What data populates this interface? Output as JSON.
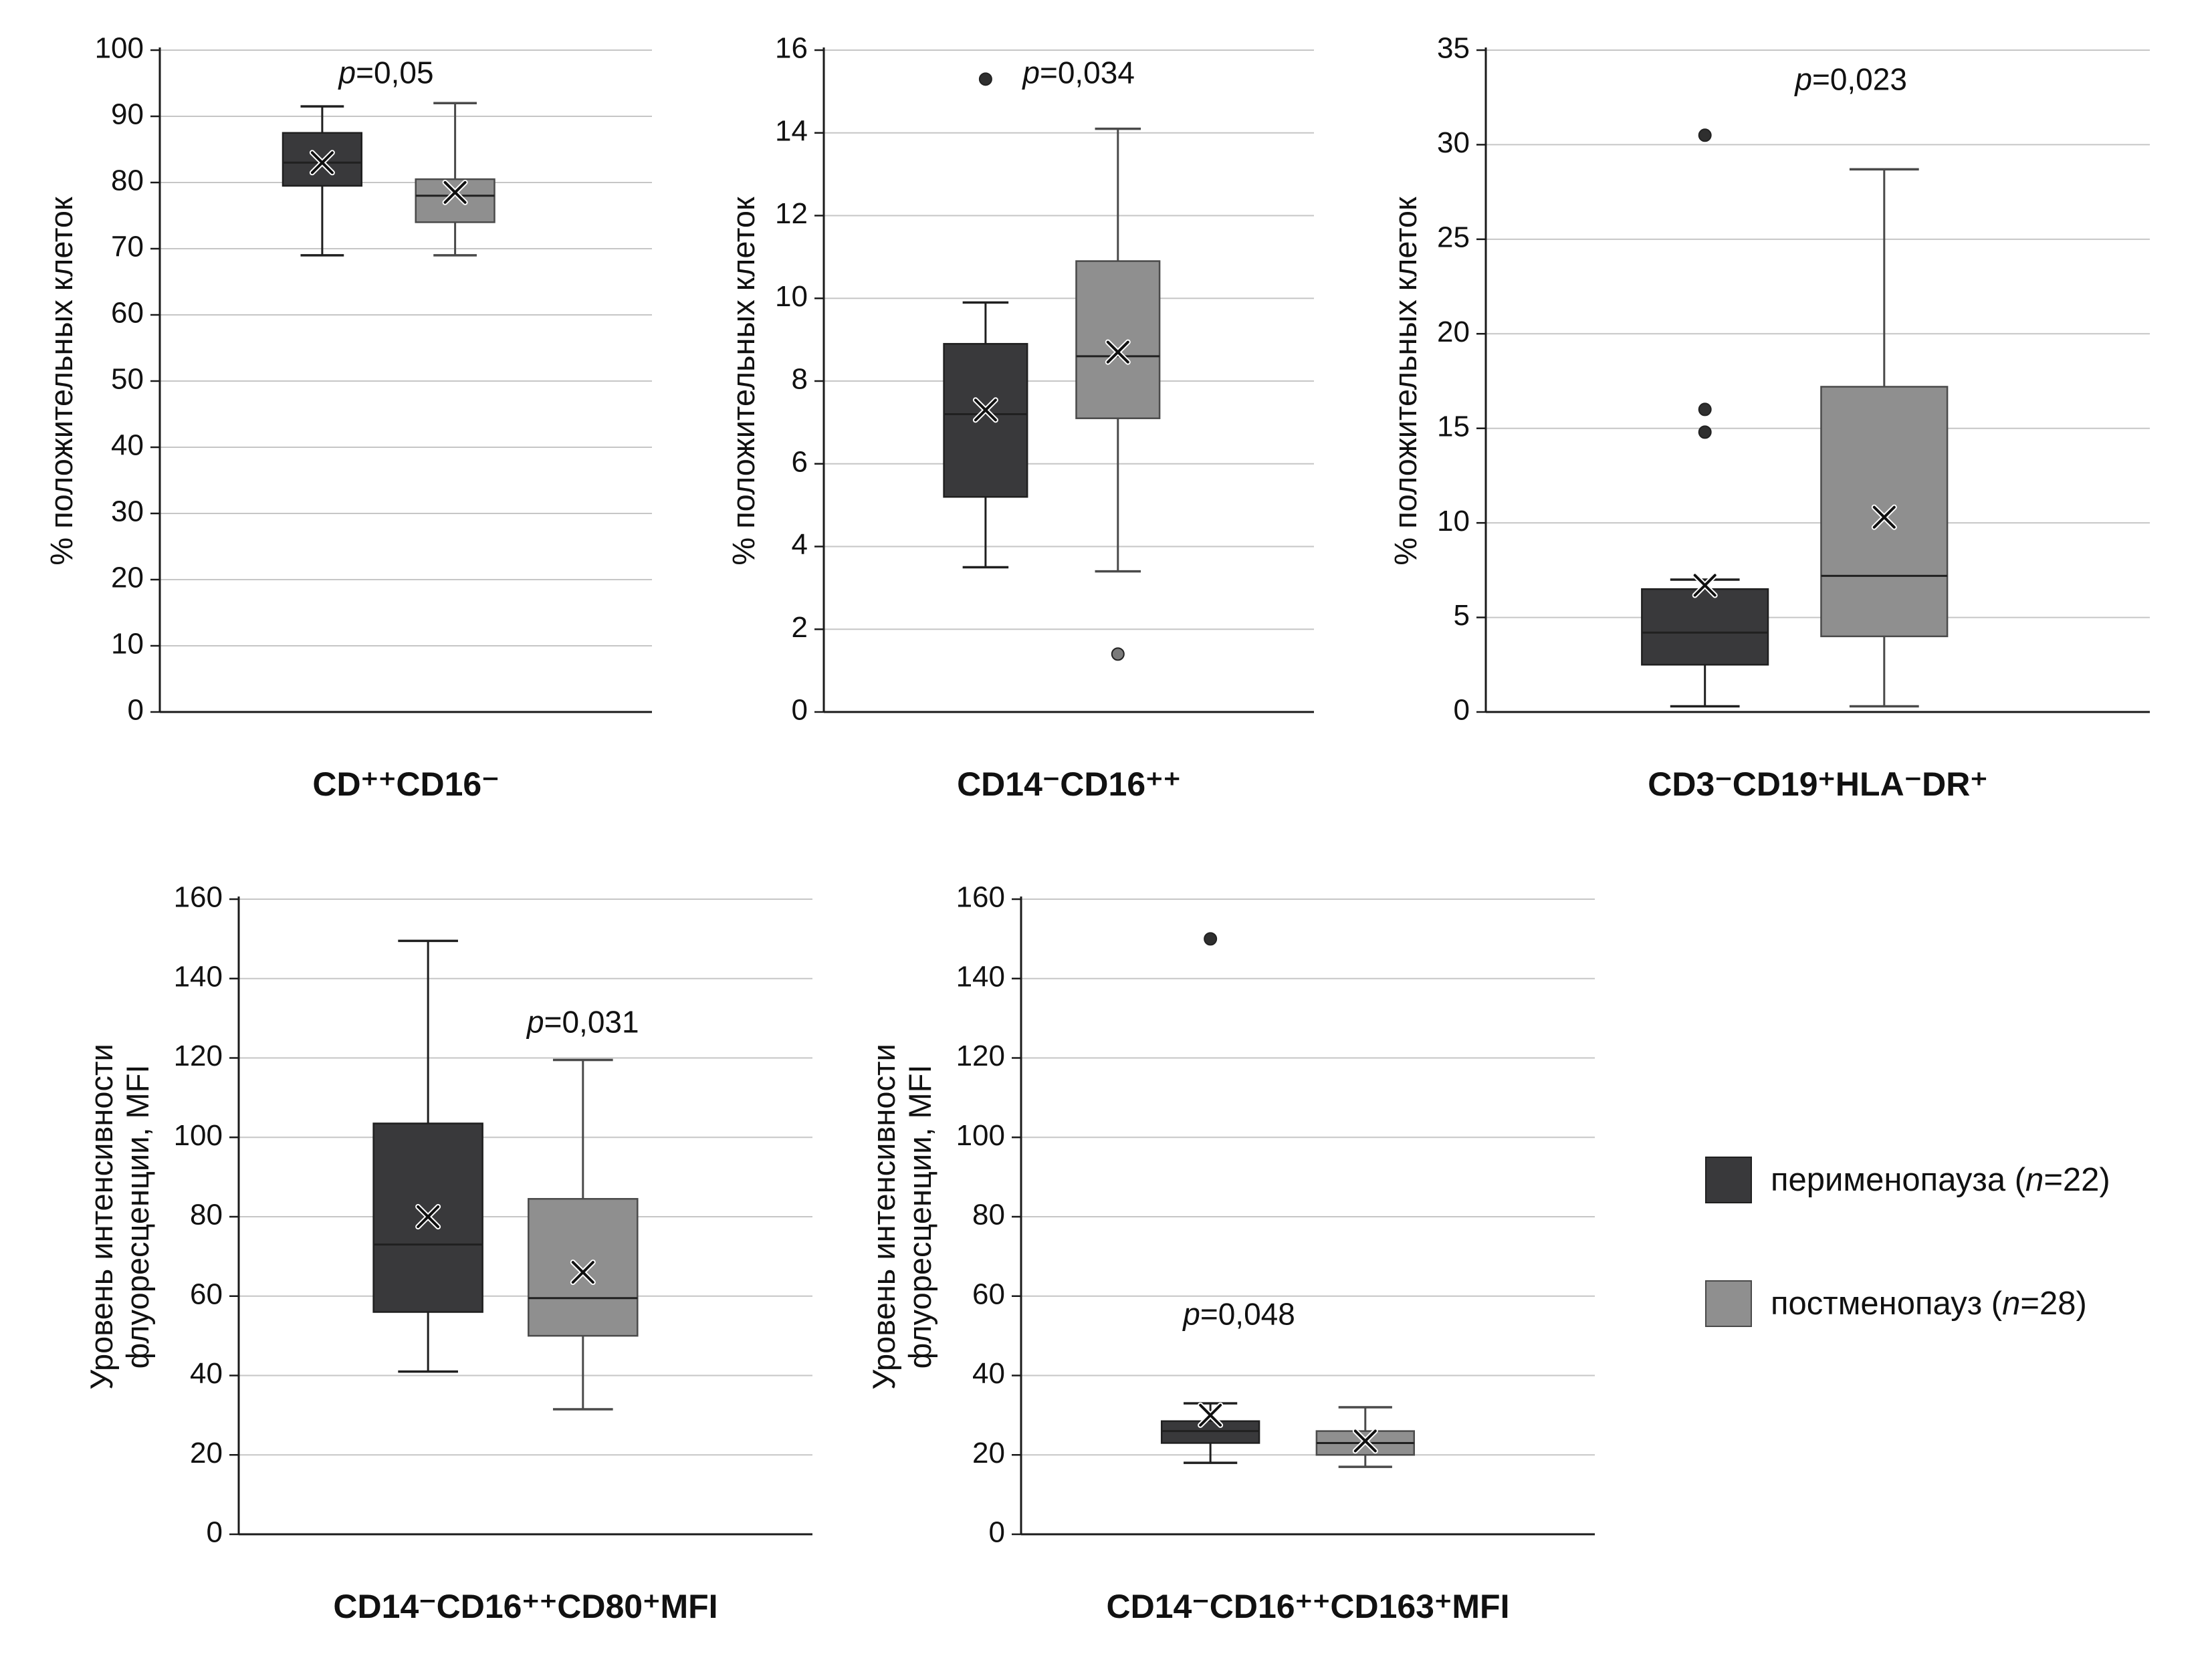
{
  "figure": {
    "background": "#ffffff"
  },
  "colors": {
    "perimenopause": "#39393b",
    "postmenopause": "#8f8f8f",
    "stroke_dark": "#1f1f1f",
    "stroke_gray": "#4a4a4a",
    "grid": "#c6c6c6",
    "axis": "#1a1a1a",
    "text": "#111111"
  },
  "legend": {
    "items": [
      {
        "label": "перименопауза (n=22)",
        "color_key": "perimenopause"
      },
      {
        "label": "постменопауз (n=28)",
        "color_key": "postmenopause"
      }
    ]
  },
  "chart_data": [
    {
      "type": "box",
      "title": "",
      "xlabel": "CD⁺⁺CD16⁻",
      "ylabel_lines": [
        "% положительных клеток"
      ],
      "ylim": [
        0,
        100
      ],
      "yticks": [
        0,
        10,
        20,
        30,
        40,
        50,
        60,
        70,
        80,
        90,
        100
      ],
      "grid": true,
      "p_label": "p=0,05",
      "p_pos": {
        "fx": 0.46,
        "fy": 0.05
      },
      "box_w_frac": 0.16,
      "series": [
        {
          "name": "перименопауза (n=22)",
          "color_key": "perimenopause",
          "whisker_low": 69,
          "q1": 79.5,
          "median": 83,
          "q3": 87.5,
          "whisker_high": 91.5,
          "mean": 83,
          "outliers": []
        },
        {
          "name": "постменопауз (n=28)",
          "color_key": "postmenopause",
          "whisker_low": 69,
          "q1": 74,
          "median": 78,
          "q3": 80.5,
          "whisker_high": 92,
          "mean": 78.5,
          "outliers": []
        }
      ]
    },
    {
      "type": "box",
      "title": "",
      "xlabel": "CD14⁻CD16⁺⁺",
      "ylabel_lines": [
        "% положительных клеток"
      ],
      "ylim": [
        0,
        16
      ],
      "yticks": [
        0,
        2,
        4,
        6,
        8,
        10,
        12,
        14,
        16
      ],
      "grid": true,
      "p_label": "p=0,034",
      "p_pos": {
        "fx": 0.52,
        "fy": 0.05
      },
      "box_w_frac": 0.17,
      "series": [
        {
          "name": "перименопауза (n=22)",
          "color_key": "perimenopause",
          "whisker_low": 3.5,
          "q1": 5.2,
          "median": 7.2,
          "q3": 8.9,
          "whisker_high": 9.9,
          "mean": 7.3,
          "outliers": [
            15.3
          ]
        },
        {
          "name": "постменопауз (n=28)",
          "color_key": "postmenopause",
          "whisker_low": 3.4,
          "q1": 7.1,
          "median": 8.6,
          "q3": 10.9,
          "whisker_high": 14.1,
          "mean": 8.7,
          "outliers": [
            1.4
          ]
        }
      ]
    },
    {
      "type": "box",
      "title": "",
      "xlabel": "CD3⁻CD19⁺HLA⁻DR⁺",
      "ylabel_lines": [
        "% положительных клеток"
      ],
      "ylim": [
        0,
        35
      ],
      "yticks": [
        0,
        5,
        10,
        15,
        20,
        25,
        30,
        35
      ],
      "grid": true,
      "p_label": "p=0,023",
      "p_pos": {
        "fx": 0.55,
        "fy": 0.06
      },
      "box_w_frac": 0.19,
      "series": [
        {
          "name": "перименопауза (n=22)",
          "color_key": "perimenopause",
          "whisker_low": 0.3,
          "q1": 2.5,
          "median": 4.2,
          "q3": 6.5,
          "whisker_high": 7.0,
          "mean": 6.7,
          "outliers": [
            14.8,
            16.0,
            30.5
          ]
        },
        {
          "name": "постменопауз (n=28)",
          "color_key": "postmenopause",
          "whisker_low": 0.3,
          "q1": 4.0,
          "median": 7.2,
          "q3": 17.2,
          "whisker_high": 28.7,
          "mean": 10.3,
          "outliers": []
        }
      ]
    },
    {
      "type": "box",
      "title": "",
      "xlabel": "CD14⁻CD16⁺⁺CD80⁺MFI",
      "ylabel_lines": [
        "Уровень интенсивности",
        "флуоресценции, MFI"
      ],
      "ylim": [
        0,
        160
      ],
      "yticks": [
        0,
        20,
        40,
        60,
        80,
        100,
        120,
        140,
        160
      ],
      "grid": true,
      "p_label": "p=0,031",
      "p_pos": {
        "fx": 0.6,
        "fy": 0.21
      },
      "box_w_frac": 0.19,
      "series": [
        {
          "name": "перименопауза (n=22)",
          "color_key": "perimenopause",
          "whisker_low": 41,
          "q1": 56,
          "median": 73,
          "q3": 103.5,
          "whisker_high": 149.5,
          "mean": 80,
          "outliers": []
        },
        {
          "name": "постменопауз (n=28)",
          "color_key": "postmenopause",
          "whisker_low": 31.5,
          "q1": 50,
          "median": 59.5,
          "q3": 84.5,
          "whisker_high": 119.5,
          "mean": 66,
          "outliers": []
        }
      ]
    },
    {
      "type": "box",
      "title": "",
      "xlabel": "CD14⁻CD16⁺⁺CD163⁺MFI",
      "ylabel_lines": [
        "Уровень интенсивности",
        "флуоресценции, MFI"
      ],
      "ylim": [
        0,
        160
      ],
      "yticks": [
        0,
        20,
        40,
        60,
        80,
        100,
        120,
        140,
        160
      ],
      "grid": true,
      "p_label": "p=0,048",
      "p_pos": {
        "fx": 0.38,
        "fy": 0.67
      },
      "box_w_frac": 0.17,
      "series": [
        {
          "name": "перименопауза (n=22)",
          "color_key": "perimenopause",
          "whisker_low": 18,
          "q1": 23,
          "median": 26,
          "q3": 28.5,
          "whisker_high": 33,
          "mean": 30,
          "outliers": [
            150
          ]
        },
        {
          "name": "постменопауз (n=28)",
          "color_key": "postmenopause",
          "whisker_low": 17,
          "q1": 20,
          "median": 23,
          "q3": 26,
          "whisker_high": 32,
          "mean": 23.5,
          "outliers": []
        }
      ]
    }
  ]
}
